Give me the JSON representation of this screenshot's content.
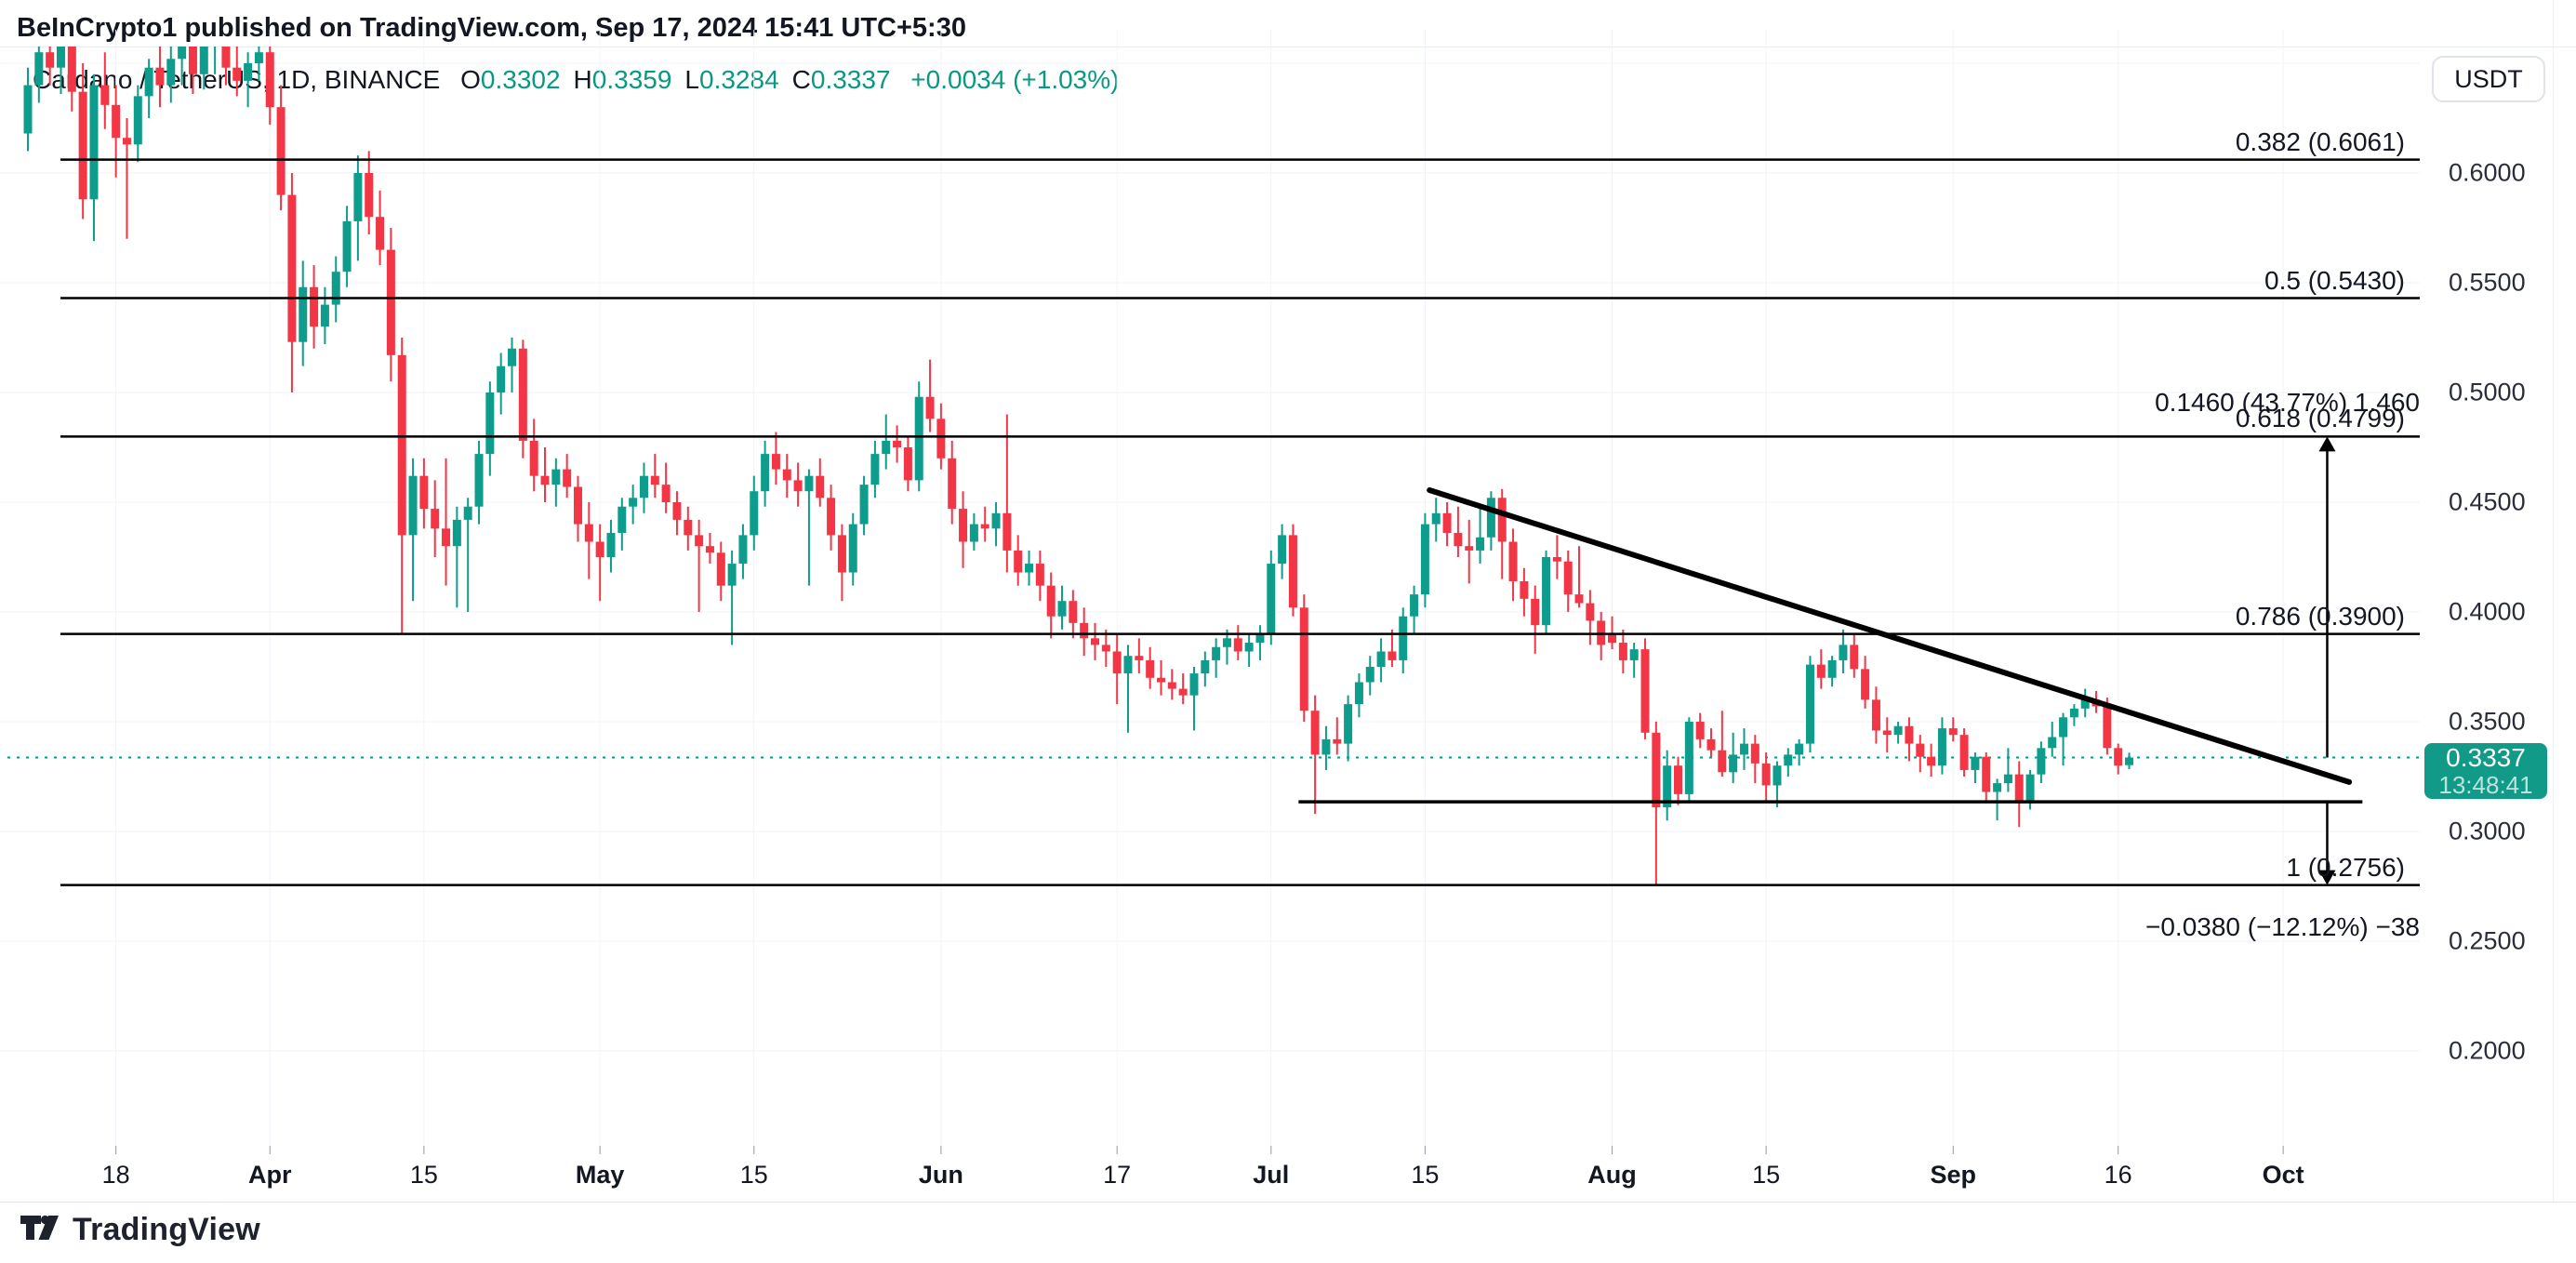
{
  "header": {
    "text": "BeInCrypto1 published on TradingView.com, Sep 17, 2024 15:41 UTC+5:30"
  },
  "toolbar": {
    "currency_button": "USDT"
  },
  "legend": {
    "symbol": "Cardano / TetherUS, 1D, BINANCE",
    "ohlc": [
      {
        "key": "O",
        "value": "0.3302"
      },
      {
        "key": "H",
        "value": "0.3359"
      },
      {
        "key": "L",
        "value": "0.3284"
      },
      {
        "key": "C",
        "value": "0.3337"
      }
    ],
    "change": "+0.0034 (+1.03%)"
  },
  "price_label": {
    "price": "0.3337",
    "countdown": "13:48:41"
  },
  "logo": {
    "text": "TradingView"
  },
  "colors": {
    "up": "#0e9d8c",
    "down": "#f23645",
    "accent": "#089981",
    "text": "#131722",
    "grid": "#f0f3fa",
    "border": "#e0e3eb",
    "drawing": "#000000",
    "price_tag_bg": "#119a88"
  },
  "chart_data": {
    "type": "candlestick",
    "symbol": "Cardano / TetherUS",
    "exchange": "BINANCE",
    "interval": "1D",
    "quote": "USDT",
    "start_date": "2024-03-10",
    "end_date": "2024-09-17",
    "last_price": 0.3337,
    "price_axis": {
      "labels": [
        "0.6000",
        "0.5500",
        "0.5000",
        "0.4500",
        "0.4000",
        "0.3500",
        "0.3000",
        "0.2500",
        "0.2000"
      ],
      "values": [
        0.6,
        0.55,
        0.5,
        0.45,
        0.4,
        0.35,
        0.3,
        0.25,
        0.2
      ]
    },
    "grid_h_values": [
      0.65,
      0.6,
      0.55,
      0.5,
      0.45,
      0.4,
      0.35,
      0.3,
      0.25,
      0.2
    ],
    "time_axis": [
      {
        "label": "18",
        "index": 8,
        "bold": false
      },
      {
        "label": "Apr",
        "index": 22,
        "bold": true
      },
      {
        "label": "15",
        "index": 36,
        "bold": false
      },
      {
        "label": "May",
        "index": 52,
        "bold": true
      },
      {
        "label": "15",
        "index": 66,
        "bold": false
      },
      {
        "label": "Jun",
        "index": 83,
        "bold": true
      },
      {
        "label": "17",
        "index": 99,
        "bold": false
      },
      {
        "label": "Jul",
        "index": 113,
        "bold": true
      },
      {
        "label": "15",
        "index": 127,
        "bold": false
      },
      {
        "label": "Aug",
        "index": 144,
        "bold": true
      },
      {
        "label": "15",
        "index": 158,
        "bold": false
      },
      {
        "label": "Sep",
        "index": 175,
        "bold": true
      },
      {
        "label": "16",
        "index": 190,
        "bold": false
      },
      {
        "label": "Oct",
        "index": 205,
        "bold": true
      }
    ],
    "fib_levels": [
      {
        "label": "0.382 (0.6061)",
        "price": 0.6061
      },
      {
        "label": "0.5 (0.5430)",
        "price": 0.543
      },
      {
        "label": "0.618 (0.4799)",
        "price": 0.4799
      },
      {
        "label": "0.786 (0.3900)",
        "price": 0.39
      },
      {
        "label": "1 (0.2756)",
        "price": 0.2756
      }
    ],
    "trendline": {
      "from_index": 127.4,
      "from_price": 0.4555,
      "to_index": 211,
      "to_price": 0.3225
    },
    "support_line": {
      "from_index": 115.5,
      "to_index": 212.2,
      "price": 0.3135
    },
    "arrows": [
      {
        "direction": "up",
        "at_index": 209,
        "from_price": 0.3337,
        "to_price": 0.4799,
        "label": "0.1460 (43.77%) 1.460",
        "label_price": 0.4952
      },
      {
        "direction": "down",
        "at_index": 209,
        "from_price": 0.3135,
        "to_price": 0.2756,
        "label": "−0.0380 (−12.12%) −38",
        "label_price": 0.2565
      }
    ],
    "candles": [
      [
        0.618,
        0.648,
        0.61,
        0.64
      ],
      [
        0.64,
        0.662,
        0.632,
        0.655
      ],
      [
        0.655,
        0.668,
        0.64,
        0.648
      ],
      [
        0.648,
        0.665,
        0.636,
        0.66
      ],
      [
        0.66,
        0.672,
        0.628,
        0.637
      ],
      [
        0.637,
        0.65,
        0.579,
        0.588
      ],
      [
        0.588,
        0.645,
        0.569,
        0.64
      ],
      [
        0.64,
        0.655,
        0.62,
        0.631
      ],
      [
        0.631,
        0.64,
        0.598,
        0.616
      ],
      [
        0.616,
        0.625,
        0.57,
        0.613
      ],
      [
        0.613,
        0.64,
        0.605,
        0.635
      ],
      [
        0.635,
        0.652,
        0.625,
        0.648
      ],
      [
        0.648,
        0.66,
        0.63,
        0.64
      ],
      [
        0.64,
        0.658,
        0.632,
        0.652
      ],
      [
        0.652,
        0.665,
        0.64,
        0.66
      ],
      [
        0.66,
        0.668,
        0.636,
        0.645
      ],
      [
        0.645,
        0.662,
        0.638,
        0.658
      ],
      [
        0.658,
        0.67,
        0.645,
        0.663
      ],
      [
        0.663,
        0.668,
        0.64,
        0.648
      ],
      [
        0.648,
        0.658,
        0.635,
        0.642
      ],
      [
        0.642,
        0.655,
        0.63,
        0.65
      ],
      [
        0.65,
        0.662,
        0.642,
        0.655
      ],
      [
        0.655,
        0.66,
        0.622,
        0.63
      ],
      [
        0.63,
        0.64,
        0.583,
        0.59
      ],
      [
        0.59,
        0.6,
        0.5,
        0.523
      ],
      [
        0.523,
        0.56,
        0.512,
        0.548
      ],
      [
        0.548,
        0.558,
        0.52,
        0.53
      ],
      [
        0.53,
        0.548,
        0.522,
        0.54
      ],
      [
        0.54,
        0.562,
        0.532,
        0.555
      ],
      [
        0.555,
        0.585,
        0.548,
        0.578
      ],
      [
        0.578,
        0.608,
        0.56,
        0.6
      ],
      [
        0.6,
        0.61,
        0.572,
        0.58
      ],
      [
        0.58,
        0.592,
        0.558,
        0.565
      ],
      [
        0.565,
        0.575,
        0.505,
        0.517
      ],
      [
        0.517,
        0.525,
        0.39,
        0.435
      ],
      [
        0.435,
        0.47,
        0.405,
        0.462
      ],
      [
        0.462,
        0.47,
        0.438,
        0.447
      ],
      [
        0.447,
        0.46,
        0.425,
        0.438
      ],
      [
        0.438,
        0.47,
        0.412,
        0.43
      ],
      [
        0.43,
        0.448,
        0.402,
        0.442
      ],
      [
        0.442,
        0.452,
        0.4,
        0.448
      ],
      [
        0.448,
        0.478,
        0.44,
        0.472
      ],
      [
        0.472,
        0.505,
        0.462,
        0.5
      ],
      [
        0.5,
        0.518,
        0.49,
        0.512
      ],
      [
        0.512,
        0.525,
        0.5,
        0.52
      ],
      [
        0.52,
        0.524,
        0.47,
        0.478
      ],
      [
        0.478,
        0.488,
        0.455,
        0.462
      ],
      [
        0.462,
        0.475,
        0.45,
        0.458
      ],
      [
        0.458,
        0.47,
        0.448,
        0.465
      ],
      [
        0.465,
        0.472,
        0.452,
        0.457
      ],
      [
        0.457,
        0.462,
        0.432,
        0.44
      ],
      [
        0.44,
        0.45,
        0.415,
        0.432
      ],
      [
        0.432,
        0.44,
        0.405,
        0.425
      ],
      [
        0.425,
        0.442,
        0.418,
        0.436
      ],
      [
        0.436,
        0.452,
        0.428,
        0.448
      ],
      [
        0.448,
        0.458,
        0.44,
        0.452
      ],
      [
        0.452,
        0.468,
        0.445,
        0.462
      ],
      [
        0.462,
        0.472,
        0.452,
        0.458
      ],
      [
        0.458,
        0.468,
        0.445,
        0.45
      ],
      [
        0.45,
        0.455,
        0.435,
        0.442
      ],
      [
        0.442,
        0.448,
        0.428,
        0.435
      ],
      [
        0.435,
        0.442,
        0.4,
        0.43
      ],
      [
        0.43,
        0.436,
        0.422,
        0.427
      ],
      [
        0.427,
        0.432,
        0.405,
        0.412
      ],
      [
        0.412,
        0.428,
        0.385,
        0.422
      ],
      [
        0.422,
        0.44,
        0.415,
        0.435
      ],
      [
        0.435,
        0.462,
        0.428,
        0.455
      ],
      [
        0.455,
        0.478,
        0.448,
        0.472
      ],
      [
        0.472,
        0.482,
        0.458,
        0.465
      ],
      [
        0.465,
        0.472,
        0.452,
        0.46
      ],
      [
        0.46,
        0.468,
        0.448,
        0.455
      ],
      [
        0.455,
        0.465,
        0.412,
        0.462
      ],
      [
        0.462,
        0.47,
        0.448,
        0.452
      ],
      [
        0.452,
        0.458,
        0.428,
        0.435
      ],
      [
        0.435,
        0.44,
        0.405,
        0.418
      ],
      [
        0.418,
        0.445,
        0.412,
        0.44
      ],
      [
        0.44,
        0.462,
        0.435,
        0.458
      ],
      [
        0.458,
        0.478,
        0.452,
        0.472
      ],
      [
        0.472,
        0.49,
        0.465,
        0.478
      ],
      [
        0.478,
        0.485,
        0.468,
        0.475
      ],
      [
        0.475,
        0.48,
        0.455,
        0.46
      ],
      [
        0.46,
        0.505,
        0.455,
        0.498
      ],
      [
        0.498,
        0.515,
        0.482,
        0.488
      ],
      [
        0.488,
        0.495,
        0.465,
        0.47
      ],
      [
        0.47,
        0.478,
        0.44,
        0.447
      ],
      [
        0.447,
        0.455,
        0.42,
        0.432
      ],
      [
        0.432,
        0.445,
        0.428,
        0.44
      ],
      [
        0.44,
        0.448,
        0.432,
        0.438
      ],
      [
        0.438,
        0.45,
        0.43,
        0.445
      ],
      [
        0.445,
        0.49,
        0.418,
        0.428
      ],
      [
        0.428,
        0.435,
        0.412,
        0.418
      ],
      [
        0.418,
        0.428,
        0.412,
        0.422
      ],
      [
        0.422,
        0.428,
        0.405,
        0.412
      ],
      [
        0.412,
        0.418,
        0.388,
        0.398
      ],
      [
        0.398,
        0.412,
        0.392,
        0.405
      ],
      [
        0.405,
        0.41,
        0.388,
        0.395
      ],
      [
        0.395,
        0.402,
        0.38,
        0.388
      ],
      [
        0.388,
        0.395,
        0.378,
        0.385
      ],
      [
        0.385,
        0.392,
        0.375,
        0.382
      ],
      [
        0.382,
        0.39,
        0.358,
        0.372
      ],
      [
        0.372,
        0.385,
        0.345,
        0.38
      ],
      [
        0.38,
        0.388,
        0.372,
        0.378
      ],
      [
        0.378,
        0.384,
        0.365,
        0.37
      ],
      [
        0.37,
        0.378,
        0.362,
        0.368
      ],
      [
        0.368,
        0.374,
        0.36,
        0.365
      ],
      [
        0.365,
        0.372,
        0.358,
        0.362
      ],
      [
        0.362,
        0.375,
        0.346,
        0.372
      ],
      [
        0.372,
        0.382,
        0.366,
        0.378
      ],
      [
        0.378,
        0.388,
        0.37,
        0.384
      ],
      [
        0.384,
        0.392,
        0.376,
        0.388
      ],
      [
        0.388,
        0.394,
        0.378,
        0.382
      ],
      [
        0.382,
        0.39,
        0.375,
        0.386
      ],
      [
        0.386,
        0.394,
        0.378,
        0.39
      ],
      [
        0.39,
        0.428,
        0.385,
        0.422
      ],
      [
        0.422,
        0.44,
        0.415,
        0.435
      ],
      [
        0.435,
        0.44,
        0.398,
        0.402
      ],
      [
        0.402,
        0.408,
        0.35,
        0.355
      ],
      [
        0.355,
        0.362,
        0.308,
        0.335
      ],
      [
        0.335,
        0.348,
        0.328,
        0.342
      ],
      [
        0.342,
        0.352,
        0.335,
        0.34
      ],
      [
        0.34,
        0.362,
        0.332,
        0.358
      ],
      [
        0.358,
        0.372,
        0.352,
        0.368
      ],
      [
        0.368,
        0.38,
        0.362,
        0.375
      ],
      [
        0.375,
        0.388,
        0.368,
        0.382
      ],
      [
        0.382,
        0.392,
        0.375,
        0.378
      ],
      [
        0.378,
        0.402,
        0.372,
        0.398
      ],
      [
        0.398,
        0.412,
        0.39,
        0.408
      ],
      [
        0.408,
        0.445,
        0.402,
        0.44
      ],
      [
        0.44,
        0.452,
        0.432,
        0.445
      ],
      [
        0.445,
        0.45,
        0.43,
        0.436
      ],
      [
        0.436,
        0.448,
        0.425,
        0.43
      ],
      [
        0.43,
        0.442,
        0.413,
        0.428
      ],
      [
        0.428,
        0.447,
        0.422,
        0.434
      ],
      [
        0.434,
        0.455,
        0.428,
        0.452
      ],
      [
        0.452,
        0.456,
        0.415,
        0.432
      ],
      [
        0.432,
        0.438,
        0.405,
        0.414
      ],
      [
        0.414,
        0.42,
        0.398,
        0.406
      ],
      [
        0.406,
        0.412,
        0.381,
        0.394
      ],
      [
        0.394,
        0.428,
        0.39,
        0.425
      ],
      [
        0.425,
        0.435,
        0.415,
        0.423
      ],
      [
        0.423,
        0.428,
        0.4,
        0.408
      ],
      [
        0.408,
        0.43,
        0.402,
        0.404
      ],
      [
        0.404,
        0.41,
        0.385,
        0.396
      ],
      [
        0.396,
        0.4,
        0.378,
        0.385
      ],
      [
        0.39,
        0.398,
        0.383,
        0.386
      ],
      [
        0.386,
        0.392,
        0.372,
        0.378
      ],
      [
        0.378,
        0.386,
        0.37,
        0.383
      ],
      [
        0.383,
        0.388,
        0.342,
        0.345
      ],
      [
        0.345,
        0.35,
        0.276,
        0.311
      ],
      [
        0.311,
        0.337,
        0.305,
        0.33
      ],
      [
        0.33,
        0.334,
        0.312,
        0.317
      ],
      [
        0.317,
        0.352,
        0.314,
        0.35
      ],
      [
        0.35,
        0.354,
        0.338,
        0.342
      ],
      [
        0.342,
        0.347,
        0.334,
        0.337
      ],
      [
        0.337,
        0.355,
        0.325,
        0.327
      ],
      [
        0.327,
        0.345,
        0.322,
        0.335
      ],
      [
        0.335,
        0.347,
        0.328,
        0.34
      ],
      [
        0.34,
        0.344,
        0.322,
        0.331
      ],
      [
        0.331,
        0.336,
        0.313,
        0.321
      ],
      [
        0.321,
        0.332,
        0.311,
        0.33
      ],
      [
        0.33,
        0.338,
        0.325,
        0.335
      ],
      [
        0.335,
        0.342,
        0.33,
        0.34
      ],
      [
        0.34,
        0.38,
        0.336,
        0.376
      ],
      [
        0.376,
        0.383,
        0.365,
        0.37
      ],
      [
        0.37,
        0.38,
        0.366,
        0.378
      ],
      [
        0.378,
        0.392,
        0.372,
        0.385
      ],
      [
        0.385,
        0.39,
        0.37,
        0.374
      ],
      [
        0.374,
        0.38,
        0.356,
        0.36
      ],
      [
        0.36,
        0.366,
        0.34,
        0.346
      ],
      [
        0.346,
        0.352,
        0.336,
        0.344
      ],
      [
        0.344,
        0.35,
        0.34,
        0.348
      ],
      [
        0.348,
        0.352,
        0.332,
        0.34
      ],
      [
        0.34,
        0.344,
        0.327,
        0.334
      ],
      [
        0.334,
        0.34,
        0.325,
        0.33
      ],
      [
        0.33,
        0.352,
        0.326,
        0.347
      ],
      [
        0.347,
        0.352,
        0.341,
        0.344
      ],
      [
        0.344,
        0.347,
        0.325,
        0.328
      ],
      [
        0.328,
        0.336,
        0.322,
        0.334
      ],
      [
        0.334,
        0.336,
        0.314,
        0.318
      ],
      [
        0.318,
        0.324,
        0.305,
        0.322
      ],
      [
        0.322,
        0.338,
        0.318,
        0.326
      ],
      [
        0.326,
        0.332,
        0.302,
        0.314
      ],
      [
        0.314,
        0.328,
        0.31,
        0.326
      ],
      [
        0.326,
        0.341,
        0.322,
        0.338
      ],
      [
        0.338,
        0.35,
        0.334,
        0.343
      ],
      [
        0.343,
        0.354,
        0.33,
        0.352
      ],
      [
        0.352,
        0.358,
        0.348,
        0.356
      ],
      [
        0.356,
        0.365,
        0.352,
        0.36
      ],
      [
        0.36,
        0.364,
        0.354,
        0.357
      ],
      [
        0.357,
        0.361,
        0.335,
        0.338
      ],
      [
        0.338,
        0.34,
        0.326,
        0.33
      ],
      [
        0.3302,
        0.3359,
        0.3284,
        0.3337
      ]
    ]
  }
}
